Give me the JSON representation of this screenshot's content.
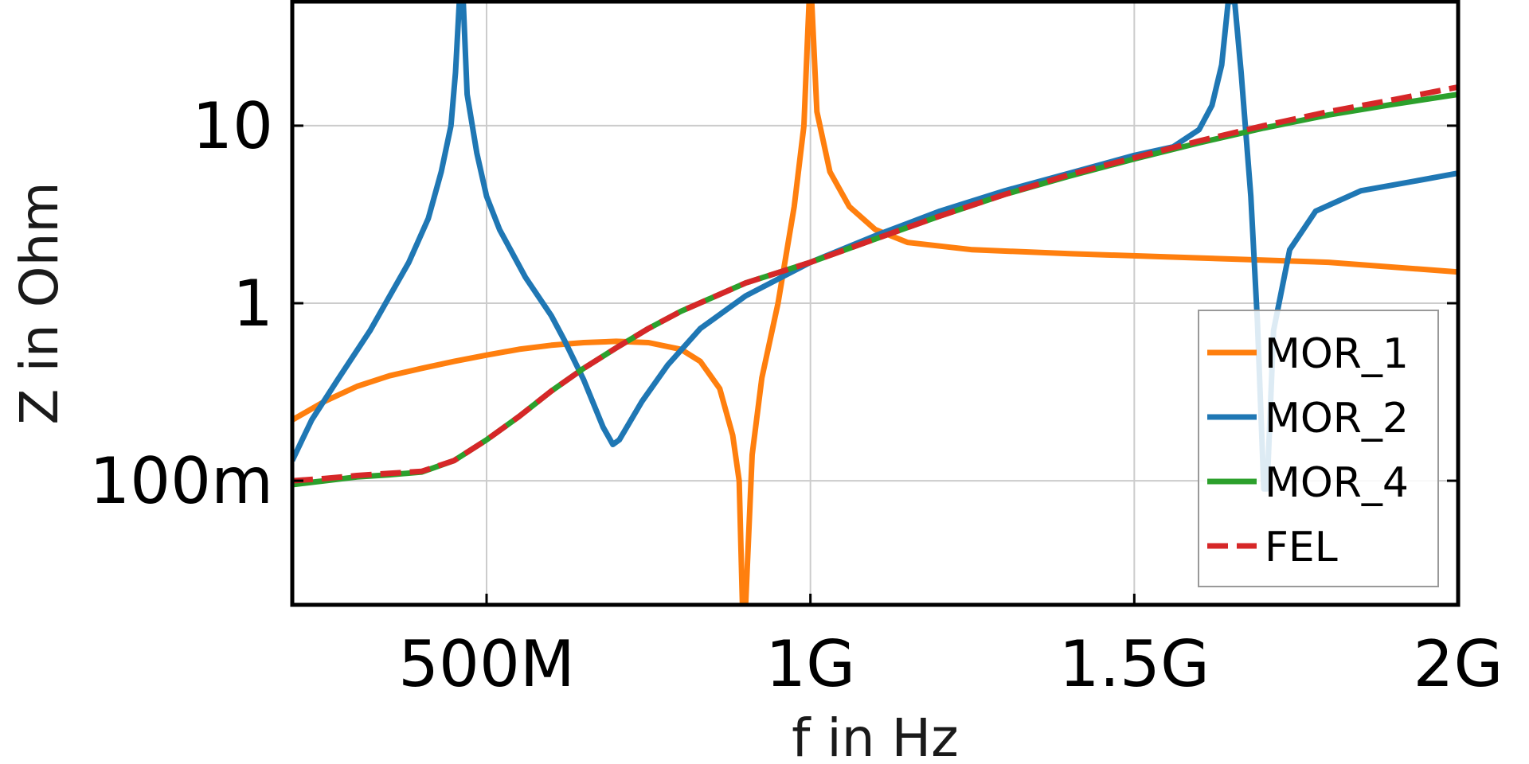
{
  "chart_data": {
    "type": "line",
    "xlabel": "f in Hz",
    "ylabel": "Z in Ohm",
    "xscale": "linear",
    "yscale": "log",
    "xlim": [
      200000000,
      2000000000
    ],
    "ylim": [
      0.02,
      50
    ],
    "grid": true,
    "legend_position": "bottom-right",
    "x_ticks": [
      {
        "value": 500000000,
        "label": "500M"
      },
      {
        "value": 1000000000,
        "label": "1G"
      },
      {
        "value": 1500000000,
        "label": "1.5G"
      },
      {
        "value": 2000000000,
        "label": "2G"
      }
    ],
    "y_ticks": [
      {
        "value": 0.1,
        "label": "100m"
      },
      {
        "value": 1,
        "label": "1"
      },
      {
        "value": 10,
        "label": "10"
      }
    ],
    "series": [
      {
        "name": "MOR_1",
        "color": "#ff7f0e",
        "dash": "solid",
        "points": [
          [
            200000000,
            0.22
          ],
          [
            250000000,
            0.28
          ],
          [
            300000000,
            0.34
          ],
          [
            350000000,
            0.39
          ],
          [
            400000000,
            0.43
          ],
          [
            450000000,
            0.47
          ],
          [
            500000000,
            0.51
          ],
          [
            550000000,
            0.55
          ],
          [
            600000000,
            0.58
          ],
          [
            650000000,
            0.6
          ],
          [
            700000000,
            0.61
          ],
          [
            750000000,
            0.6
          ],
          [
            800000000,
            0.55
          ],
          [
            830000000,
            0.47
          ],
          [
            860000000,
            0.33
          ],
          [
            880000000,
            0.18
          ],
          [
            890000000,
            0.1
          ],
          [
            895000000,
            0.02
          ],
          [
            900000000,
            0.02
          ],
          [
            910000000,
            0.14
          ],
          [
            925000000,
            0.38
          ],
          [
            950000000,
            1.0
          ],
          [
            975000000,
            3.5
          ],
          [
            990000000,
            10
          ],
          [
            995000000,
            28
          ],
          [
            998000000,
            50
          ],
          [
            1002000000,
            50
          ],
          [
            1010000000,
            12
          ],
          [
            1030000000,
            5.5
          ],
          [
            1060000000,
            3.5
          ],
          [
            1100000000,
            2.6
          ],
          [
            1150000000,
            2.2
          ],
          [
            1250000000,
            2.0
          ],
          [
            1400000000,
            1.9
          ],
          [
            1600000000,
            1.8
          ],
          [
            1800000000,
            1.7
          ],
          [
            2000000000,
            1.5
          ]
        ]
      },
      {
        "name": "MOR_2",
        "color": "#1f77b4",
        "dash": "solid",
        "points": [
          [
            200000000,
            0.13
          ],
          [
            230000000,
            0.22
          ],
          [
            270000000,
            0.37
          ],
          [
            320000000,
            0.7
          ],
          [
            380000000,
            1.7
          ],
          [
            410000000,
            3.0
          ],
          [
            430000000,
            5.5
          ],
          [
            445000000,
            10
          ],
          [
            452000000,
            20
          ],
          [
            458000000,
            50
          ],
          [
            464000000,
            50
          ],
          [
            470000000,
            15
          ],
          [
            485000000,
            7
          ],
          [
            500000000,
            4.0
          ],
          [
            520000000,
            2.6
          ],
          [
            560000000,
            1.4
          ],
          [
            600000000,
            0.85
          ],
          [
            620000000,
            0.62
          ],
          [
            650000000,
            0.37
          ],
          [
            680000000,
            0.2
          ],
          [
            695000000,
            0.16
          ],
          [
            705000000,
            0.17
          ],
          [
            740000000,
            0.28
          ],
          [
            780000000,
            0.45
          ],
          [
            830000000,
            0.72
          ],
          [
            900000000,
            1.1
          ],
          [
            1000000000,
            1.7
          ],
          [
            1100000000,
            2.4
          ],
          [
            1200000000,
            3.3
          ],
          [
            1300000000,
            4.3
          ],
          [
            1400000000,
            5.4
          ],
          [
            1500000000,
            6.8
          ],
          [
            1560000000,
            7.6
          ],
          [
            1600000000,
            9.5
          ],
          [
            1620000000,
            13
          ],
          [
            1635000000,
            22
          ],
          [
            1645000000,
            50
          ],
          [
            1655000000,
            50
          ],
          [
            1665000000,
            20
          ],
          [
            1680000000,
            4
          ],
          [
            1690000000,
            0.8
          ],
          [
            1700000000,
            0.09
          ],
          [
            1705000000,
            0.09
          ],
          [
            1715000000,
            0.7
          ],
          [
            1740000000,
            2.0
          ],
          [
            1780000000,
            3.3
          ],
          [
            1850000000,
            4.3
          ],
          [
            1950000000,
            5.0
          ],
          [
            2000000000,
            5.4
          ]
        ]
      },
      {
        "name": "MOR_4",
        "color": "#2ca02c",
        "dash": "solid",
        "points": [
          [
            200000000,
            0.095
          ],
          [
            250000000,
            0.1
          ],
          [
            300000000,
            0.105
          ],
          [
            350000000,
            0.108
          ],
          [
            400000000,
            0.112
          ],
          [
            450000000,
            0.13
          ],
          [
            500000000,
            0.17
          ],
          [
            550000000,
            0.23
          ],
          [
            600000000,
            0.32
          ],
          [
            650000000,
            0.43
          ],
          [
            700000000,
            0.56
          ],
          [
            750000000,
            0.72
          ],
          [
            800000000,
            0.9
          ],
          [
            900000000,
            1.3
          ],
          [
            1000000000,
            1.7
          ],
          [
            1100000000,
            2.3
          ],
          [
            1200000000,
            3.1
          ],
          [
            1300000000,
            4.1
          ],
          [
            1400000000,
            5.2
          ],
          [
            1500000000,
            6.5
          ],
          [
            1600000000,
            8.0
          ],
          [
            1700000000,
            9.7
          ],
          [
            1800000000,
            11.5
          ],
          [
            1900000000,
            13.2
          ],
          [
            2000000000,
            15.0
          ]
        ]
      },
      {
        "name": "FEL",
        "color": "#d62728",
        "dash": "dashed",
        "points": [
          [
            200000000,
            0.1
          ],
          [
            250000000,
            0.103
          ],
          [
            300000000,
            0.107
          ],
          [
            350000000,
            0.11
          ],
          [
            400000000,
            0.113
          ],
          [
            450000000,
            0.13
          ],
          [
            500000000,
            0.17
          ],
          [
            550000000,
            0.23
          ],
          [
            600000000,
            0.32
          ],
          [
            650000000,
            0.43
          ],
          [
            700000000,
            0.56
          ],
          [
            750000000,
            0.72
          ],
          [
            800000000,
            0.9
          ],
          [
            900000000,
            1.3
          ],
          [
            1000000000,
            1.7
          ],
          [
            1100000000,
            2.3
          ],
          [
            1200000000,
            3.1
          ],
          [
            1300000000,
            4.1
          ],
          [
            1400000000,
            5.3
          ],
          [
            1500000000,
            6.6
          ],
          [
            1600000000,
            8.2
          ],
          [
            1700000000,
            10.0
          ],
          [
            1800000000,
            12.0
          ],
          [
            1900000000,
            14.0
          ],
          [
            2000000000,
            16.5
          ]
        ]
      }
    ]
  }
}
